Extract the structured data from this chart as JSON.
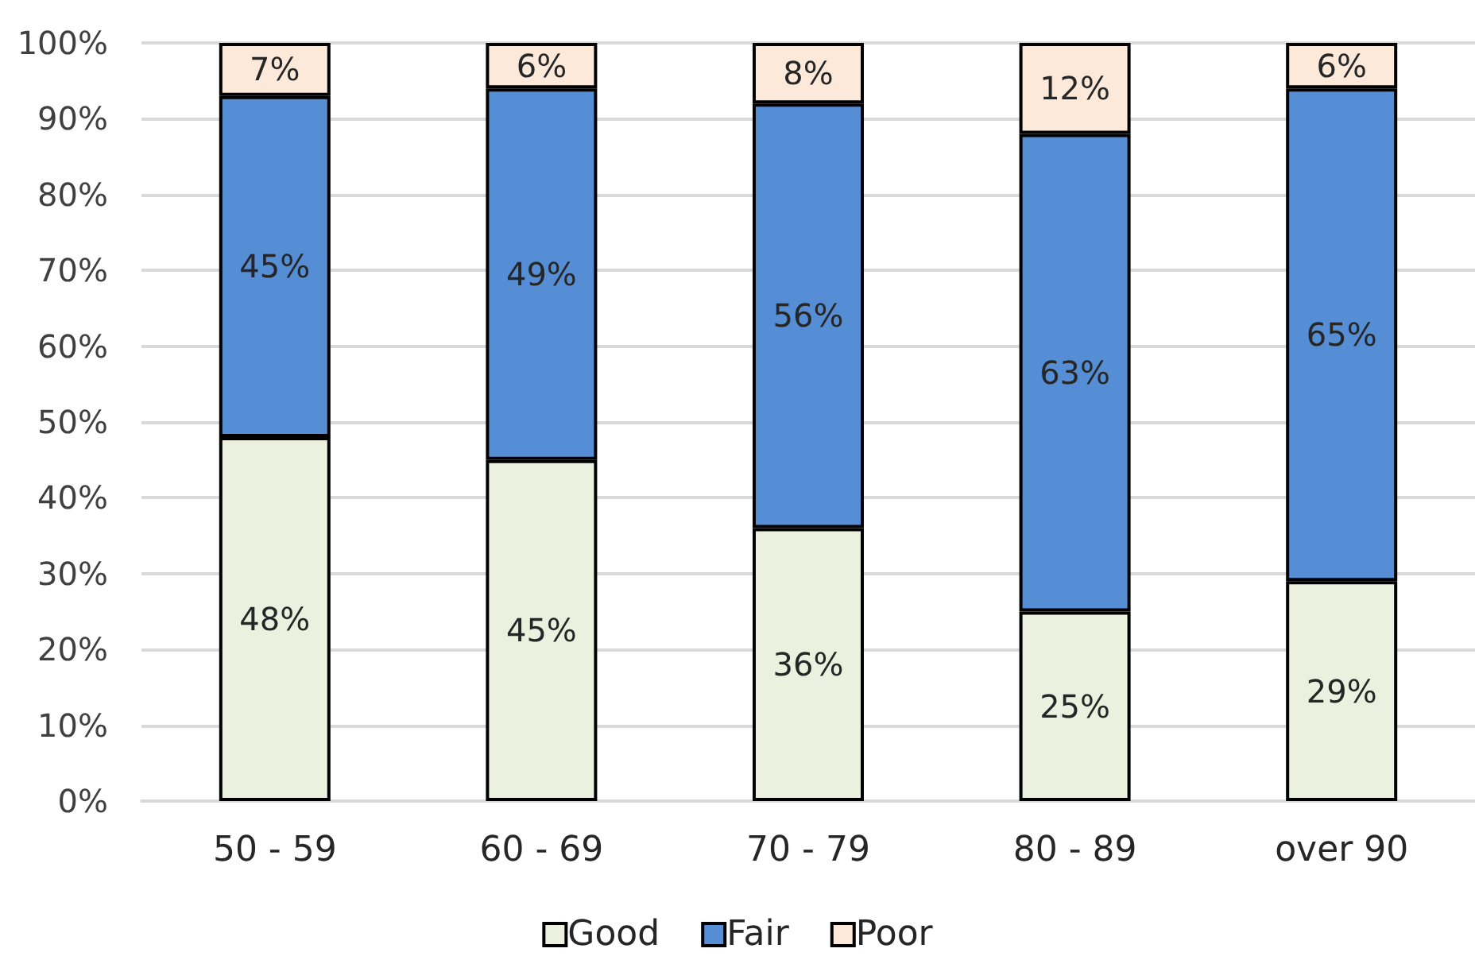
{
  "chart_data": {
    "type": "bar",
    "stacked": true,
    "categories": [
      "50 - 59",
      "60 - 69",
      "70 - 79",
      "80 - 89",
      "over 90"
    ],
    "series": [
      {
        "name": "Good",
        "color": "#ebf1de",
        "values": [
          48,
          45,
          36,
          25,
          29
        ],
        "value_labels": [
          "48%",
          "45%",
          "36%",
          "25%",
          "29%"
        ]
      },
      {
        "name": "Fair",
        "color": "#558ed5",
        "values": [
          45,
          49,
          56,
          63,
          65
        ],
        "value_labels": [
          "45%",
          "49%",
          "56%",
          "63%",
          "65%"
        ]
      },
      {
        "name": "Poor",
        "color": "#fde9d9",
        "values": [
          7,
          6,
          8,
          12,
          6
        ],
        "value_labels": [
          "7%",
          "6%",
          "8%",
          "12%",
          "6%"
        ]
      }
    ],
    "ylim": [
      0,
      100
    ],
    "yticks": [
      {
        "value": 0,
        "label": "0%"
      },
      {
        "value": 10,
        "label": "10%"
      },
      {
        "value": 20,
        "label": "20%"
      },
      {
        "value": 30,
        "label": "30%"
      },
      {
        "value": 40,
        "label": "40%"
      },
      {
        "value": 50,
        "label": "50%"
      },
      {
        "value": 60,
        "label": "60%"
      },
      {
        "value": 70,
        "label": "70%"
      },
      {
        "value": 80,
        "label": "80%"
      },
      {
        "value": 90,
        "label": "90%"
      },
      {
        "value": 100,
        "label": "100%"
      }
    ],
    "grid": "y",
    "legend": "bottom"
  }
}
